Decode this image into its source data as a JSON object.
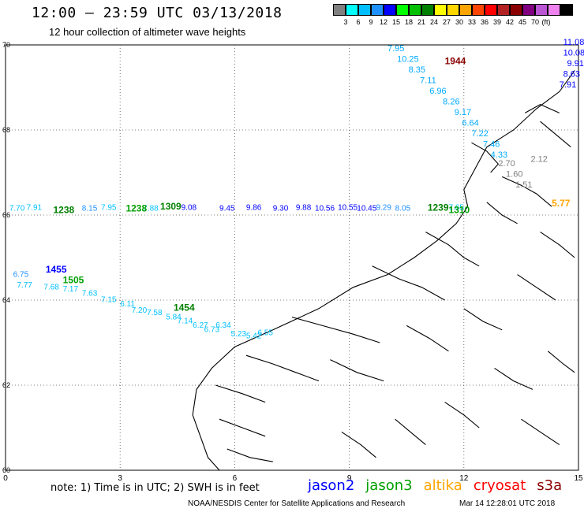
{
  "title": "12:00 – 23:59 UTC 03/13/2018",
  "subtitle": "12 hour collection of altimeter wave heights",
  "color_scale": {
    "colors": [
      "#808080",
      "#00ffff",
      "#00bfff",
      "#1e90ff",
      "#0000ff",
      "#00ff00",
      "#00c000",
      "#008000",
      "#ffff00",
      "#ffd700",
      "#ffa500",
      "#ff4500",
      "#ff0000",
      "#b22222",
      "#8b0000",
      "#800080",
      "#ba55d3",
      "#ee82ee",
      "#000000"
    ],
    "labels": [
      "3",
      "6",
      "9",
      "12",
      "15",
      "18",
      "21",
      "24",
      "27",
      "30",
      "33",
      "36",
      "39",
      "42",
      "45",
      "70"
    ],
    "unit": "(ft)"
  },
  "axes": {
    "y_ticks": [
      "70",
      "68",
      "66",
      "64",
      "62",
      "60"
    ],
    "x_ticks": [
      "0",
      "3",
      "6",
      "9",
      "12",
      "15"
    ]
  },
  "tracks": [
    {
      "name": "east-descending",
      "color": "#00aaff",
      "labels": [
        {
          "t": "7.95",
          "lon": 10.0,
          "lat": 69.85
        },
        {
          "t": "10.25",
          "lon": 10.25,
          "lat": 69.6
        },
        {
          "t": "8.35",
          "lon": 10.55,
          "lat": 69.35
        },
        {
          "t": "7.11",
          "lon": 10.85,
          "lat": 69.1
        },
        {
          "t": "6.96",
          "lon": 11.1,
          "lat": 68.85
        },
        {
          "t": "8.26",
          "lon": 11.45,
          "lat": 68.6
        },
        {
          "t": "9.17",
          "lon": 11.75,
          "lat": 68.35
        },
        {
          "t": "6.64",
          "lon": 11.95,
          "lat": 68.1
        },
        {
          "t": "7.22",
          "lon": 12.2,
          "lat": 67.85
        },
        {
          "t": "7.46",
          "lon": 12.5,
          "lat": 67.6
        },
        {
          "t": "4.33",
          "lon": 12.7,
          "lat": 67.35
        }
      ]
    },
    {
      "name": "east-edge",
      "color": "#0000ff",
      "labels": [
        {
          "t": "11.08",
          "lon": 14.6,
          "lat": 70.0
        },
        {
          "t": "10.08",
          "lon": 14.6,
          "lat": 69.75
        },
        {
          "t": "9.91",
          "lon": 14.7,
          "lat": 69.5
        },
        {
          "t": "8.63",
          "lon": 14.6,
          "lat": 69.25
        },
        {
          "t": "7.91",
          "lon": 14.5,
          "lat": 69.0
        }
      ]
    },
    {
      "name": "grey-segment",
      "color": "#808080",
      "labels": [
        {
          "t": "2.70",
          "lon": 12.9,
          "lat": 67.15
        },
        {
          "t": "2.12",
          "lon": 13.75,
          "lat": 67.25
        },
        {
          "t": "1.60",
          "lon": 13.1,
          "lat": 66.9
        },
        {
          "t": "1.51",
          "lon": 13.35,
          "lat": 66.65
        }
      ]
    }
  ],
  "time_labels": [
    {
      "t": "1944",
      "lon": 11.5,
      "lat": 69.55,
      "color": "#8b0000"
    },
    {
      "t": "1239",
      "lon": 11.05,
      "lat": 66.1,
      "color": "#008000"
    },
    {
      "t": "1310",
      "lon": 11.6,
      "lat": 66.05,
      "color": "#00a000"
    },
    {
      "t": "1309",
      "lon": 4.05,
      "lat": 66.13,
      "color": "#008000"
    },
    {
      "t": "1238",
      "lon": 3.15,
      "lat": 66.08,
      "color": "#00a000"
    },
    {
      "t": "1238",
      "lon": 1.25,
      "lat": 66.05,
      "color": "#008000"
    },
    {
      "t": "1455",
      "lon": 1.05,
      "lat": 64.65,
      "color": "#0000ff"
    },
    {
      "t": "1505",
      "lon": 1.5,
      "lat": 64.4,
      "color": "#00a000"
    },
    {
      "t": "1454",
      "lon": 4.4,
      "lat": 63.75,
      "color": "#008000"
    },
    {
      "t": "5.77",
      "lon": 14.3,
      "lat": 66.2,
      "color": "#ffa500"
    }
  ],
  "note": "note: 1) Time is in UTC; 2) SWH is in feet",
  "legend": [
    {
      "name": "jason2",
      "color": "#0000ff"
    },
    {
      "name": "jason3",
      "color": "#00a000"
    },
    {
      "name": "altika",
      "color": "#ffa500"
    },
    {
      "name": "cryosat",
      "color": "#ff0000"
    },
    {
      "name": "s3a",
      "color": "#8b0000"
    }
  ],
  "credit": "NOAA/NESDIS Center for Satellite Applications and Research",
  "timestamp": "Mar 14 12:28:01 UTC 2018"
}
